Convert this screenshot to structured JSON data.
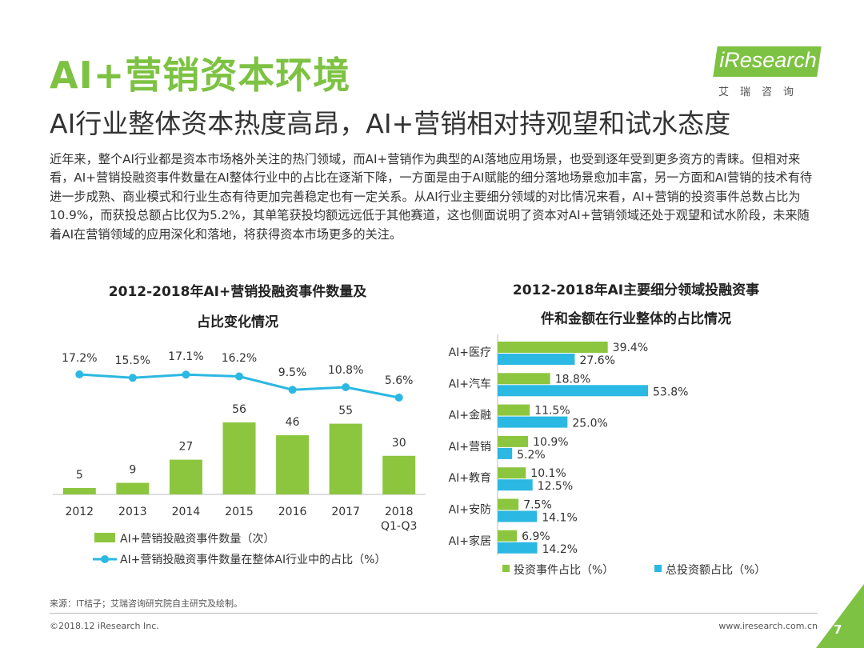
{
  "header": {
    "title": "AI+营销资本环境",
    "subtitle": "AI行业整体资本热度高昂，AI+营销相对持观望和试水态度"
  },
  "logo": {
    "text": "iResearch",
    "sub": "艾瑞咨询"
  },
  "body": {
    "paragraph": "近年来，整个AI行业都是资本市场格外关注的热门领域，而AI+营销作为典型的AI落地应用场景，也受到逐年受到更多资方的青睐。但相对来看，AI+营销投融资事件数量在AI整体行业中的占比在逐渐下降，一方面是由于AI赋能的细分落地场景愈加丰富，另一方面和AI营销的技术有待进一步成熟、商业模式和行业生态有待更加完善稳定也有一定关系。从AI行业主要细分领域的对比情况来看，AI+营销的投资事件总数占比为10.9%，而获投总额占比仅为5.2%，其单笔获投均额远远低于其他赛道，这也侧面说明了资本对AI+营销领域还处于观望和试水阶段，未来随着AI在营销领域的应用深化和落地，将获得资本市场更多的关注。"
  },
  "chart_data": [
    {
      "type": "bar",
      "title_line1": "2012-2018年AI+营销投融资事件数量及",
      "title_line2": "占比变化情况",
      "categories": [
        "2012",
        "2013",
        "2014",
        "2015",
        "2016",
        "2017",
        "2018\nQ1-Q3"
      ],
      "series": [
        {
          "name": "AI+营销投融资事件数量（次）",
          "type": "bar",
          "values": [
            5,
            9,
            27,
            56,
            46,
            55,
            30
          ],
          "labels": [
            "5",
            "9",
            "27",
            "56",
            "46",
            "55",
            "30"
          ],
          "color": "#8cc63f"
        },
        {
          "name": "AI+营销投融资事件数量在整体AI行业中的占比（%）",
          "type": "line",
          "values": [
            17.2,
            15.5,
            17.1,
            16.2,
            9.5,
            10.8,
            5.6
          ],
          "labels": [
            "17.2%",
            "15.5%",
            "17.1%",
            "16.2%",
            "9.5%",
            "10.8%",
            "5.6%"
          ],
          "color": "#2bb8e2"
        }
      ],
      "legend_position": "bottom"
    },
    {
      "type": "bar",
      "orientation": "horizontal",
      "title_line1": "2012-2018年AI主要细分领域投融资事",
      "title_line2": "件和金额在行业整体的占比情况",
      "categories": [
        "AI+医疗",
        "AI+汽车",
        "AI+金融",
        "AI+营销",
        "AI+教育",
        "AI+安防",
        "AI+家居"
      ],
      "series": [
        {
          "name": "投资事件占比（%）",
          "values": [
            39.4,
            18.8,
            11.5,
            10.9,
            10.1,
            7.5,
            6.9
          ],
          "labels": [
            "39.4%",
            "18.8%",
            "11.5%",
            "10.9%",
            "10.1%",
            "7.5%",
            "6.9%"
          ],
          "color": "#8cc63f"
        },
        {
          "name": "总投资额占比（%）",
          "values": [
            27.6,
            53.8,
            25.0,
            5.2,
            12.5,
            14.1,
            14.2
          ],
          "labels": [
            "27.6%",
            "53.8%",
            "25.0%",
            "5.2%",
            "12.5%",
            "14.1%",
            "14.2%"
          ],
          "color": "#2bb8e2"
        }
      ],
      "legend_position": "bottom"
    }
  ],
  "footer": {
    "source": "来源：IT桔子；艾瑞咨询研究院自主研究及绘制。",
    "copyright": "©2018.12 iResearch Inc.",
    "website": "www.iresearch.com.cn",
    "page": "7"
  },
  "colors": {
    "brand_green": "#7dc242",
    "bar_green": "#8cc63f",
    "line_blue": "#2bb8e2"
  }
}
